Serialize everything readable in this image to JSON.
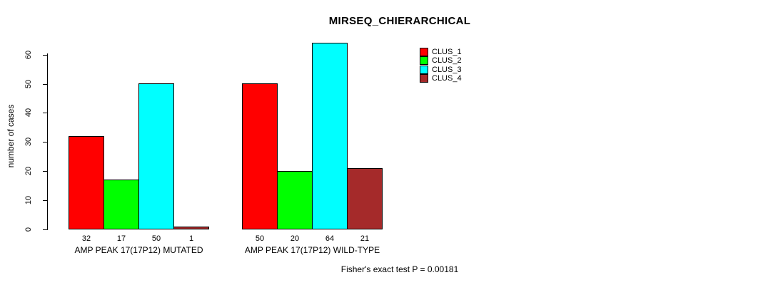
{
  "chart_data": {
    "type": "bar",
    "title": "MIRSEQ_CHIERARCHICAL",
    "ylabel": "number of cases",
    "xlabel": "",
    "ylim": [
      0,
      60
    ],
    "yticks": [
      0,
      10,
      20,
      30,
      40,
      50,
      60
    ],
    "grid": false,
    "background": "#ffffff",
    "categories": [
      "AMP PEAK 17(17P12) MUTATED",
      "AMP PEAK 17(17P12) WILD-TYPE"
    ],
    "series": [
      {
        "name": "CLUS_1",
        "color": "#ff0000",
        "values": [
          32,
          50
        ]
      },
      {
        "name": "CLUS_2",
        "color": "#00ff00",
        "values": [
          17,
          20
        ]
      },
      {
        "name": "CLUS_3",
        "color": "#00ffff",
        "values": [
          50,
          64
        ]
      },
      {
        "name": "CLUS_4",
        "color": "#a52a2a",
        "values": [
          1,
          21
        ]
      }
    ],
    "bar_value_labels": [
      [
        32,
        17,
        50,
        1
      ],
      [
        50,
        20,
        64,
        21
      ]
    ],
    "legend": {
      "position": "top-right",
      "entries": [
        "CLUS_1",
        "CLUS_2",
        "CLUS_3",
        "CLUS_4"
      ]
    },
    "annotation": "Fisher's exact test P = 0.00181"
  }
}
